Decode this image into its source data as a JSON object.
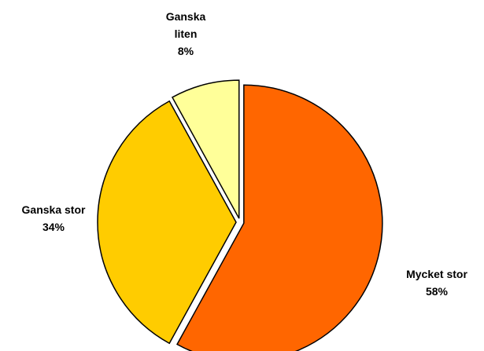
{
  "chart_data": {
    "type": "pie",
    "categories": [
      "Mycket stor",
      "Ganska stor",
      "Ganska liten"
    ],
    "values": [
      58,
      34,
      8
    ],
    "value_labels": [
      "58%",
      "34%",
      "8%"
    ],
    "colors": [
      "#ff6600",
      "#ffcc00",
      "#ffff99"
    ]
  }
}
